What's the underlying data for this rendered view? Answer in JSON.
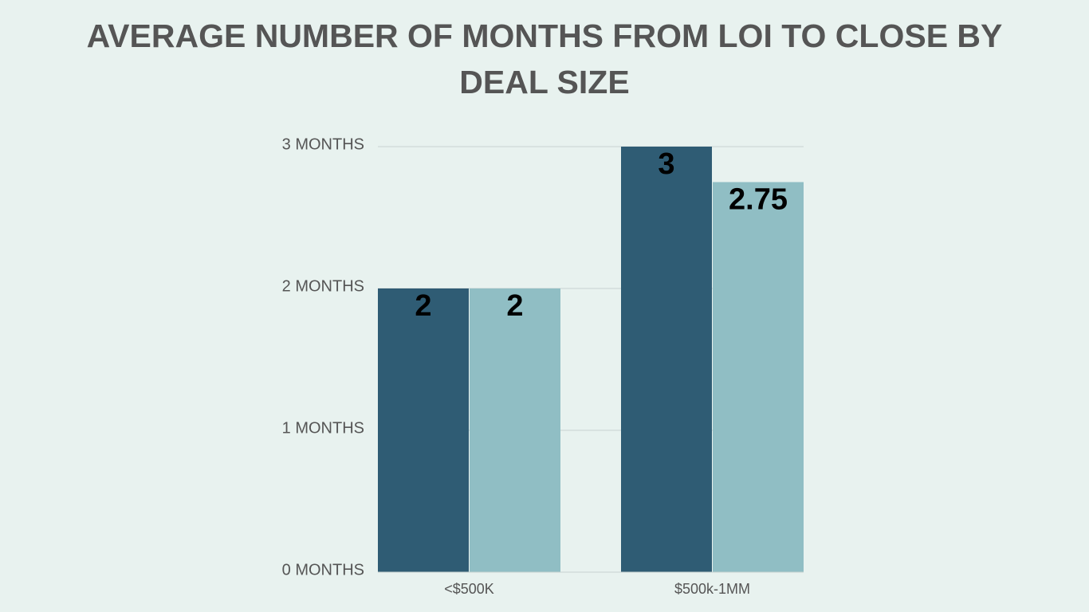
{
  "chart_data": {
    "type": "bar",
    "title": "AVERAGE NUMBER OF MONTHS FROM LOI TO CLOSE BY DEAL SIZE",
    "categories": [
      "<$500K",
      "$500k-1MM"
    ],
    "series": [
      {
        "color": "#2f5c74",
        "values": [
          2,
          3
        ]
      },
      {
        "color": "#90bec4",
        "values": [
          2,
          2.75
        ]
      }
    ],
    "ylim": [
      0,
      3
    ],
    "yticks": [
      {
        "value": 0,
        "label": "0 MONTHS"
      },
      {
        "value": 1,
        "label": "1 MONTHS"
      },
      {
        "value": 2,
        "label": "2 MONTHS"
      },
      {
        "value": 3,
        "label": "3 MONTHS"
      }
    ],
    "grid": true
  }
}
